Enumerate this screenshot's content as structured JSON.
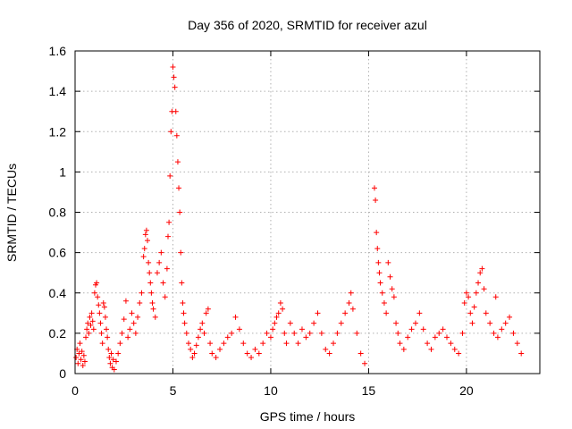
{
  "chart_data": {
    "type": "scatter",
    "title": "Day 356 of 2020, SRMTID for receiver azul",
    "xlabel": "GPS time / hours",
    "ylabel": "SRMTID / TECUs",
    "xlim": [
      0,
      23.75
    ],
    "ylim": [
      0,
      1.6
    ],
    "xticks": [
      0,
      5,
      10,
      15,
      20
    ],
    "yticks": [
      0,
      0.2,
      0.4,
      0.6,
      0.8,
      1,
      1.2,
      1.4,
      1.6
    ],
    "ytick_labels": [
      "0",
      "0.2",
      "0.4",
      "0.6",
      "0.8",
      "1",
      "1.2",
      "1.4",
      "1.6"
    ],
    "grid": true,
    "marker": "+",
    "color": "#ff0000",
    "series": [
      {
        "name": "SRMTID",
        "points": [
          [
            0.05,
            0.08
          ],
          [
            0.1,
            0.12
          ],
          [
            0.15,
            0.05
          ],
          [
            0.2,
            0.1
          ],
          [
            0.25,
            0.15
          ],
          [
            0.3,
            0.07
          ],
          [
            0.35,
            0.11
          ],
          [
            0.4,
            0.04
          ],
          [
            0.45,
            0.09
          ],
          [
            0.5,
            0.06
          ],
          [
            0.55,
            0.18
          ],
          [
            0.6,
            0.22
          ],
          [
            0.65,
            0.25
          ],
          [
            0.7,
            0.2
          ],
          [
            0.75,
            0.28
          ],
          [
            0.8,
            0.24
          ],
          [
            0.85,
            0.3
          ],
          [
            0.9,
            0.26
          ],
          [
            0.95,
            0.22
          ],
          [
            1.0,
            0.4
          ],
          [
            1.05,
            0.44
          ],
          [
            1.1,
            0.45
          ],
          [
            1.15,
            0.38
          ],
          [
            1.2,
            0.34
          ],
          [
            1.25,
            0.3
          ],
          [
            1.3,
            0.25
          ],
          [
            1.35,
            0.2
          ],
          [
            1.4,
            0.15
          ],
          [
            1.45,
            0.35
          ],
          [
            1.5,
            0.33
          ],
          [
            1.55,
            0.28
          ],
          [
            1.6,
            0.22
          ],
          [
            1.65,
            0.18
          ],
          [
            1.7,
            0.12
          ],
          [
            1.75,
            0.08
          ],
          [
            1.8,
            0.05
          ],
          [
            1.85,
            0.1
          ],
          [
            1.9,
            0.03
          ],
          [
            1.95,
            0.07
          ],
          [
            2.0,
            0.02
          ],
          [
            2.1,
            0.06
          ],
          [
            2.2,
            0.1
          ],
          [
            2.3,
            0.15
          ],
          [
            2.4,
            0.2
          ],
          [
            2.5,
            0.27
          ],
          [
            2.6,
            0.36
          ],
          [
            2.7,
            0.18
          ],
          [
            2.8,
            0.22
          ],
          [
            2.9,
            0.3
          ],
          [
            3.0,
            0.25
          ],
          [
            3.1,
            0.2
          ],
          [
            3.2,
            0.28
          ],
          [
            3.3,
            0.35
          ],
          [
            3.4,
            0.4
          ],
          [
            3.5,
            0.58
          ],
          [
            3.55,
            0.62
          ],
          [
            3.6,
            0.69
          ],
          [
            3.65,
            0.71
          ],
          [
            3.7,
            0.66
          ],
          [
            3.75,
            0.55
          ],
          [
            3.8,
            0.5
          ],
          [
            3.85,
            0.45
          ],
          [
            3.9,
            0.4
          ],
          [
            3.95,
            0.35
          ],
          [
            4.0,
            0.32
          ],
          [
            4.1,
            0.28
          ],
          [
            4.2,
            0.5
          ],
          [
            4.3,
            0.55
          ],
          [
            4.4,
            0.6
          ],
          [
            4.5,
            0.45
          ],
          [
            4.6,
            0.38
          ],
          [
            4.7,
            0.52
          ],
          [
            4.75,
            0.68
          ],
          [
            4.8,
            0.75
          ],
          [
            4.85,
            0.98
          ],
          [
            4.9,
            1.2
          ],
          [
            4.95,
            1.3
          ],
          [
            5.0,
            1.52
          ],
          [
            5.05,
            1.47
          ],
          [
            5.1,
            1.42
          ],
          [
            5.15,
            1.3
          ],
          [
            5.2,
            1.18
          ],
          [
            5.25,
            1.05
          ],
          [
            5.3,
            0.92
          ],
          [
            5.35,
            0.8
          ],
          [
            5.4,
            0.6
          ],
          [
            5.45,
            0.45
          ],
          [
            5.5,
            0.35
          ],
          [
            5.55,
            0.3
          ],
          [
            5.6,
            0.25
          ],
          [
            5.7,
            0.2
          ],
          [
            5.8,
            0.15
          ],
          [
            5.9,
            0.12
          ],
          [
            6.0,
            0.08
          ],
          [
            6.1,
            0.1
          ],
          [
            6.2,
            0.14
          ],
          [
            6.3,
            0.18
          ],
          [
            6.4,
            0.22
          ],
          [
            6.5,
            0.25
          ],
          [
            6.6,
            0.2
          ],
          [
            6.7,
            0.3
          ],
          [
            6.8,
            0.32
          ],
          [
            6.9,
            0.15
          ],
          [
            7.0,
            0.1
          ],
          [
            7.2,
            0.08
          ],
          [
            7.4,
            0.12
          ],
          [
            7.6,
            0.15
          ],
          [
            7.8,
            0.18
          ],
          [
            8.0,
            0.2
          ],
          [
            8.2,
            0.28
          ],
          [
            8.4,
            0.22
          ],
          [
            8.6,
            0.15
          ],
          [
            8.8,
            0.1
          ],
          [
            9.0,
            0.08
          ],
          [
            9.2,
            0.12
          ],
          [
            9.4,
            0.1
          ],
          [
            9.6,
            0.15
          ],
          [
            9.8,
            0.2
          ],
          [
            10.0,
            0.18
          ],
          [
            10.1,
            0.22
          ],
          [
            10.2,
            0.25
          ],
          [
            10.3,
            0.28
          ],
          [
            10.4,
            0.3
          ],
          [
            10.5,
            0.35
          ],
          [
            10.6,
            0.32
          ],
          [
            10.7,
            0.2
          ],
          [
            10.8,
            0.15
          ],
          [
            11.0,
            0.25
          ],
          [
            11.2,
            0.2
          ],
          [
            11.4,
            0.15
          ],
          [
            11.6,
            0.22
          ],
          [
            11.8,
            0.18
          ],
          [
            12.0,
            0.2
          ],
          [
            12.2,
            0.25
          ],
          [
            12.4,
            0.3
          ],
          [
            12.6,
            0.2
          ],
          [
            12.8,
            0.12
          ],
          [
            13.0,
            0.1
          ],
          [
            13.2,
            0.15
          ],
          [
            13.4,
            0.2
          ],
          [
            13.6,
            0.25
          ],
          [
            13.8,
            0.3
          ],
          [
            14.0,
            0.35
          ],
          [
            14.1,
            0.4
          ],
          [
            14.2,
            0.32
          ],
          [
            14.4,
            0.2
          ],
          [
            14.6,
            0.1
          ],
          [
            14.8,
            0.05
          ],
          [
            15.3,
            0.92
          ],
          [
            15.35,
            0.86
          ],
          [
            15.4,
            0.7
          ],
          [
            15.45,
            0.62
          ],
          [
            15.5,
            0.55
          ],
          [
            15.55,
            0.5
          ],
          [
            15.6,
            0.45
          ],
          [
            15.7,
            0.4
          ],
          [
            15.8,
            0.35
          ],
          [
            15.9,
            0.3
          ],
          [
            16.0,
            0.55
          ],
          [
            16.1,
            0.48
          ],
          [
            16.2,
            0.42
          ],
          [
            16.3,
            0.38
          ],
          [
            16.4,
            0.25
          ],
          [
            16.5,
            0.2
          ],
          [
            16.6,
            0.15
          ],
          [
            16.8,
            0.12
          ],
          [
            17.0,
            0.18
          ],
          [
            17.2,
            0.22
          ],
          [
            17.4,
            0.25
          ],
          [
            17.6,
            0.3
          ],
          [
            17.8,
            0.22
          ],
          [
            18.0,
            0.15
          ],
          [
            18.2,
            0.12
          ],
          [
            18.4,
            0.18
          ],
          [
            18.6,
            0.2
          ],
          [
            18.8,
            0.22
          ],
          [
            19.0,
            0.18
          ],
          [
            19.2,
            0.15
          ],
          [
            19.4,
            0.12
          ],
          [
            19.6,
            0.1
          ],
          [
            19.8,
            0.2
          ],
          [
            19.9,
            0.35
          ],
          [
            20.0,
            0.4
          ],
          [
            20.1,
            0.38
          ],
          [
            20.2,
            0.3
          ],
          [
            20.3,
            0.25
          ],
          [
            20.4,
            0.33
          ],
          [
            20.5,
            0.4
          ],
          [
            20.6,
            0.45
          ],
          [
            20.7,
            0.5
          ],
          [
            20.8,
            0.52
          ],
          [
            20.9,
            0.42
          ],
          [
            21.0,
            0.3
          ],
          [
            21.2,
            0.25
          ],
          [
            21.4,
            0.2
          ],
          [
            21.5,
            0.38
          ],
          [
            21.6,
            0.18
          ],
          [
            21.8,
            0.22
          ],
          [
            22.0,
            0.25
          ],
          [
            22.2,
            0.28
          ],
          [
            22.4,
            0.2
          ],
          [
            22.6,
            0.15
          ],
          [
            22.8,
            0.1
          ]
        ]
      }
    ]
  }
}
